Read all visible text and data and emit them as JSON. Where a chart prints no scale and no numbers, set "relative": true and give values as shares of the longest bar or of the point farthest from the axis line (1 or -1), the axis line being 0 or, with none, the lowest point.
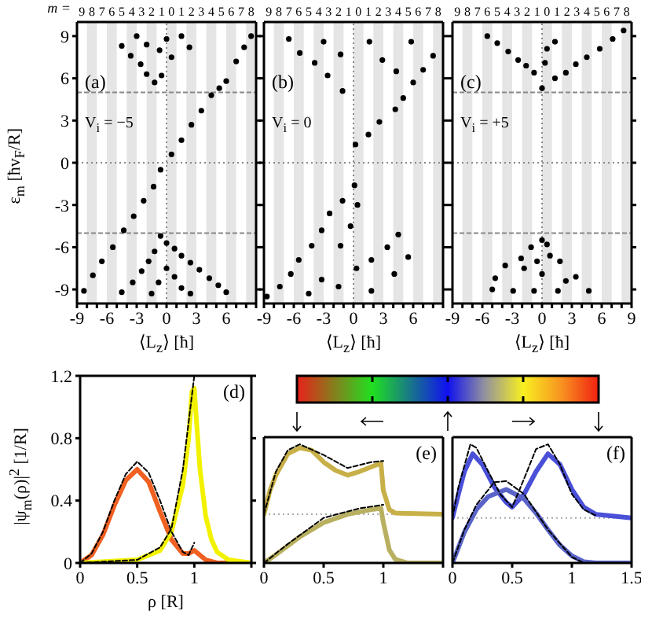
{
  "chart_data": [
    {
      "type": "scatter",
      "x2label": "m =",
      "xlabel": "⟨L$_{z}$⟩ [ħ]",
      "ylabel": "ε$_{m}$ [ħv$_{F}$/R]",
      "annotations": [
        "(a)",
        "V$_{i}$ = −5"
      ],
      "marker": "circle",
      "xlim": [
        -9,
        9
      ],
      "ylim": [
        -10,
        10
      ],
      "xticks": [
        -9,
        {
          "value": -8,
          "label": null
        },
        {
          "value": -7,
          "label": null
        },
        -6,
        {
          "value": -5,
          "label": null
        },
        {
          "value": -4,
          "label": null
        },
        -3,
        {
          "value": -2,
          "label": null
        },
        {
          "value": -1,
          "label": null
        },
        0,
        {
          "value": 1,
          "label": null
        },
        {
          "value": 2,
          "label": null
        },
        3,
        {
          "value": 4,
          "label": null
        },
        {
          "value": 5,
          "label": null
        },
        6,
        {
          "value": 7,
          "label": null
        },
        {
          "value": 8,
          "label": null
        },
        {
          "value": 9,
          "label": null
        }
      ],
      "yticks": [
        -9,
        -6,
        -3,
        0,
        3,
        6,
        9
      ],
      "x2lim": [
        -9,
        9
      ],
      "x2ticks": [
        {
          "value": -8.5,
          "label": "9"
        },
        {
          "value": -7.5,
          "label": "8"
        },
        {
          "value": -6.5,
          "label": "7"
        },
        {
          "value": -5.5,
          "label": "6"
        },
        {
          "value": -4.5,
          "label": "5"
        },
        {
          "value": -3.5,
          "label": "4"
        },
        {
          "value": -2.5,
          "label": "3"
        },
        {
          "value": -1.5,
          "label": "2"
        },
        {
          "value": -0.5,
          "label": "1"
        },
        {
          "value": 0.5,
          "label": "0"
        },
        {
          "value": 1.5,
          "label": "1"
        },
        {
          "value": 2.5,
          "label": "2"
        },
        {
          "value": 3.5,
          "label": "3"
        },
        {
          "value": 4.5,
          "label": "4"
        },
        {
          "value": 5.5,
          "label": "5"
        },
        {
          "value": 6.5,
          "label": "6"
        },
        {
          "value": 7.5,
          "label": "7"
        },
        {
          "value": 8.5,
          "label": "8"
        }
      ],
      "bands": [
        {
          "axis": "x",
          "from": -8,
          "to": -7,
          "color": "#e5e5e5"
        },
        {
          "axis": "x",
          "from": -6,
          "to": -5,
          "color": "#e5e5e5"
        },
        {
          "axis": "x",
          "from": -4,
          "to": -3,
          "color": "#e5e5e5"
        },
        {
          "axis": "x",
          "from": -2,
          "to": -1,
          "color": "#e5e5e5"
        },
        {
          "axis": "x",
          "from": 0,
          "to": 1,
          "color": "#e5e5e5"
        },
        {
          "axis": "x",
          "from": 2,
          "to": 3,
          "color": "#e5e5e5"
        },
        {
          "axis": "x",
          "from": 4,
          "to": 5,
          "color": "#e5e5e5"
        },
        {
          "axis": "x",
          "from": 6,
          "to": 7,
          "color": "#e5e5e5"
        },
        {
          "axis": "x",
          "from": 8,
          "to": 9,
          "color": "#e5e5e5"
        }
      ],
      "ref_lines": [
        {
          "axis": "y",
          "value": 5,
          "color": "#888888",
          "line_style": "dashed"
        },
        {
          "axis": "y",
          "value": -5,
          "color": "#888888",
          "line_style": "dashed"
        },
        {
          "axis": "y",
          "value": 0,
          "color": "#888888",
          "line_style": "dotted"
        },
        {
          "axis": "x",
          "value": 0,
          "color": "#888888",
          "line_style": "dotted"
        }
      ],
      "series": [
        {
          "color": "#000000",
          "x": [
            -8.3,
            -7.4,
            -6.5,
            -5.4,
            -4.3,
            -3.3,
            -2.3,
            -1.3,
            -0.6,
            0.5,
            1.5,
            2.5,
            3.5,
            4.5,
            5.3,
            6,
            7,
            7.8,
            8.5,
            -0.6,
            0,
            0.8,
            1.5,
            2.4,
            3.3,
            4.3,
            5.2,
            6,
            -1.2,
            -1.8,
            -2.5,
            -3.4,
            -4.5,
            0,
            0.8,
            -0.8,
            1.5,
            -1.5,
            2.4,
            -4.5,
            -3.6,
            -2.6,
            -2,
            -1.2,
            -3,
            -2,
            -0.7,
            0,
            0.5,
            1.5,
            2.3,
            -0.5
          ],
          "values": [
            -9.1,
            -8,
            -7,
            -6,
            -4.8,
            -3.8,
            -2.7,
            -1.7,
            -0.5,
            0.6,
            1.6,
            2.7,
            3.7,
            4.8,
            5.3,
            5.8,
            7.2,
            8.2,
            9,
            -5.2,
            -5.7,
            -6.1,
            -6.6,
            -7.1,
            -7.6,
            -8.2,
            -8.7,
            -9.2,
            -6.3,
            -7,
            -7.7,
            -8.5,
            -9.2,
            -7.5,
            -8.1,
            -8.5,
            -8.9,
            -9.3,
            -9.3,
            8.3,
            7.6,
            7,
            6.3,
            5.7,
            9,
            8.4,
            8,
            8.8,
            7.5,
            9,
            8.2,
            6.2
          ]
        }
      ]
    },
    {
      "type": "scatter",
      "xlabel": "⟨L$_{z}$⟩ [ħ]",
      "annotations": [
        "(b)",
        "V$_{i}$ = 0"
      ],
      "marker": "circle",
      "tick_labels": "x",
      "xlim": [
        -9,
        9
      ],
      "ylim": [
        -10,
        10
      ],
      "xticks": [
        -9,
        {
          "value": -8,
          "label": null
        },
        {
          "value": -7,
          "label": null
        },
        -6,
        {
          "value": -5,
          "label": null
        },
        {
          "value": -4,
          "label": null
        },
        -3,
        {
          "value": -2,
          "label": null
        },
        {
          "value": -1,
          "label": null
        },
        0,
        {
          "value": 1,
          "label": null
        },
        {
          "value": 2,
          "label": null
        },
        3,
        {
          "value": 4,
          "label": null
        },
        {
          "value": 5,
          "label": null
        },
        6,
        {
          "value": 7,
          "label": null
        },
        {
          "value": 8,
          "label": null
        },
        {
          "value": 9,
          "label": null
        }
      ],
      "yticks": [
        {
          "value": -9,
          "label": null
        },
        {
          "value": -6,
          "label": null
        },
        {
          "value": -3,
          "label": null
        },
        {
          "value": 0,
          "label": null
        },
        {
          "value": 3,
          "label": null
        },
        {
          "value": 6,
          "label": null
        },
        {
          "value": 9,
          "label": null
        }
      ],
      "x2lim": [
        -9,
        9
      ],
      "x2ticks": [
        {
          "value": -8.5,
          "label": "9"
        },
        {
          "value": -7.5,
          "label": "8"
        },
        {
          "value": -6.5,
          "label": "7"
        },
        {
          "value": -5.5,
          "label": "6"
        },
        {
          "value": -4.5,
          "label": "5"
        },
        {
          "value": -3.5,
          "label": "4"
        },
        {
          "value": -2.5,
          "label": "3"
        },
        {
          "value": -1.5,
          "label": "2"
        },
        {
          "value": -0.5,
          "label": "1"
        },
        {
          "value": 0.5,
          "label": "0"
        },
        {
          "value": 1.5,
          "label": "1"
        },
        {
          "value": 2.5,
          "label": "2"
        },
        {
          "value": 3.5,
          "label": "3"
        },
        {
          "value": 4.5,
          "label": "4"
        },
        {
          "value": 5.5,
          "label": "5"
        },
        {
          "value": 6.5,
          "label": "6"
        },
        {
          "value": 7.5,
          "label": "7"
        },
        {
          "value": 8.5,
          "label": "8"
        }
      ],
      "bands": [
        {
          "axis": "x",
          "from": -8,
          "to": -7,
          "color": "#e5e5e5"
        },
        {
          "axis": "x",
          "from": -6,
          "to": -5,
          "color": "#e5e5e5"
        },
        {
          "axis": "x",
          "from": -4,
          "to": -3,
          "color": "#e5e5e5"
        },
        {
          "axis": "x",
          "from": -2,
          "to": -1,
          "color": "#e5e5e5"
        },
        {
          "axis": "x",
          "from": 0,
          "to": 1,
          "color": "#e5e5e5"
        },
        {
          "axis": "x",
          "from": 2,
          "to": 3,
          "color": "#e5e5e5"
        },
        {
          "axis": "x",
          "from": 4,
          "to": 5,
          "color": "#e5e5e5"
        },
        {
          "axis": "x",
          "from": 6,
          "to": 7,
          "color": "#e5e5e5"
        },
        {
          "axis": "x",
          "from": 8,
          "to": 9,
          "color": "#e5e5e5"
        }
      ],
      "ref_lines": [
        {
          "axis": "y",
          "value": 0,
          "color": "#888888",
          "line_style": "dotted"
        },
        {
          "axis": "x",
          "value": 0,
          "color": "#888888",
          "line_style": "dotted"
        }
      ],
      "series": [
        {
          "color": "#000000",
          "x": [
            0.1,
            -1.1,
            0.4,
            -2.4,
            -0.3,
            -3.2,
            -1.3,
            -4.2,
            -5.5,
            -6.3,
            -7.4,
            -8.7,
            -3.2,
            -1.5,
            0.3,
            1.8,
            3.4,
            4.5,
            1.8,
            4.1,
            5.5,
            -4.5,
            0.2,
            1.5,
            2.6,
            4.2,
            5,
            6,
            7,
            8,
            -5.4,
            -3.9,
            -2.6,
            -1.1,
            -3,
            -1.3,
            1.6,
            2.9,
            4.3,
            5.8,
            -6.5
          ],
          "values": [
            -1.6,
            -2.7,
            -3,
            -3.6,
            -4.5,
            -4.8,
            -5.9,
            -5.9,
            -6.9,
            -7.9,
            -8.8,
            -9.5,
            -8.3,
            -8.8,
            -7.5,
            -6.9,
            -6,
            -5.1,
            -9.1,
            -7.9,
            -6.7,
            -9.3,
            1.3,
            2,
            2.9,
            3.8,
            4.6,
            5.7,
            6.6,
            7.6,
            7.8,
            7.1,
            6.2,
            5.1,
            8.6,
            7.7,
            8.6,
            7.3,
            6.5,
            8.6,
            8.8
          ]
        }
      ]
    },
    {
      "type": "scatter",
      "xlabel": "⟨L$_{z}$⟩ [ħ]",
      "annotations": [
        "(c)",
        "V$_{i}$ = +5"
      ],
      "marker": "circle",
      "tick_labels": "x",
      "xlim": [
        -9,
        9
      ],
      "ylim": [
        -10,
        10
      ],
      "xticks": [
        -9,
        {
          "value": -8,
          "label": null
        },
        {
          "value": -7,
          "label": null
        },
        -6,
        {
          "value": -5,
          "label": null
        },
        {
          "value": -4,
          "label": null
        },
        -3,
        {
          "value": -2,
          "label": null
        },
        {
          "value": -1,
          "label": null
        },
        0,
        {
          "value": 1,
          "label": null
        },
        {
          "value": 2,
          "label": null
        },
        3,
        {
          "value": 4,
          "label": null
        },
        {
          "value": 5,
          "label": null
        },
        6,
        {
          "value": 7,
          "label": null
        },
        {
          "value": 8,
          "label": null
        },
        9
      ],
      "yticks": [
        {
          "value": -9,
          "label": null
        },
        {
          "value": -6,
          "label": null
        },
        {
          "value": -3,
          "label": null
        },
        {
          "value": 0,
          "label": null
        },
        {
          "value": 3,
          "label": null
        },
        {
          "value": 6,
          "label": null
        },
        {
          "value": 9,
          "label": null
        }
      ],
      "x2lim": [
        -9,
        9
      ],
      "x2ticks": [
        {
          "value": -8.5,
          "label": "9"
        },
        {
          "value": -7.5,
          "label": "8"
        },
        {
          "value": -6.5,
          "label": "7"
        },
        {
          "value": -5.5,
          "label": "6"
        },
        {
          "value": -4.5,
          "label": "5"
        },
        {
          "value": -3.5,
          "label": "4"
        },
        {
          "value": -2.5,
          "label": "3"
        },
        {
          "value": -1.5,
          "label": "2"
        },
        {
          "value": -0.5,
          "label": "1"
        },
        {
          "value": 0.5,
          "label": "0"
        },
        {
          "value": 1.5,
          "label": "1"
        },
        {
          "value": 2.5,
          "label": "2"
        },
        {
          "value": 3.5,
          "label": "3"
        },
        {
          "value": 4.5,
          "label": "4"
        },
        {
          "value": 5.5,
          "label": "5"
        },
        {
          "value": 6.5,
          "label": "6"
        },
        {
          "value": 7.5,
          "label": "7"
        },
        {
          "value": 8.5,
          "label": "8"
        }
      ],
      "bands": [
        {
          "axis": "x",
          "from": -8,
          "to": -7,
          "color": "#e5e5e5"
        },
        {
          "axis": "x",
          "from": -6,
          "to": -5,
          "color": "#e5e5e5"
        },
        {
          "axis": "x",
          "from": -4,
          "to": -3,
          "color": "#e5e5e5"
        },
        {
          "axis": "x",
          "from": -2,
          "to": -1,
          "color": "#e5e5e5"
        },
        {
          "axis": "x",
          "from": 0,
          "to": 1,
          "color": "#e5e5e5"
        },
        {
          "axis": "x",
          "from": 2,
          "to": 3,
          "color": "#e5e5e5"
        },
        {
          "axis": "x",
          "from": 4,
          "to": 5,
          "color": "#e5e5e5"
        },
        {
          "axis": "x",
          "from": 6,
          "to": 7,
          "color": "#e5e5e5"
        },
        {
          "axis": "x",
          "from": 8,
          "to": 9,
          "color": "#e5e5e5"
        }
      ],
      "ref_lines": [
        {
          "axis": "y",
          "value": 5,
          "color": "#888888",
          "line_style": "dashed"
        },
        {
          "axis": "y",
          "value": -5,
          "color": "#888888",
          "line_style": "dashed"
        },
        {
          "axis": "y",
          "value": 0,
          "color": "#888888",
          "line_style": "dotted"
        },
        {
          "axis": "x",
          "value": 0,
          "color": "#888888",
          "line_style": "dotted"
        }
      ],
      "series": [
        {
          "color": "#000000",
          "x": [
            0,
            1.3,
            2.4,
            3.4,
            4.5,
            5.8,
            7.1,
            8.2,
            -0.8,
            -1.6,
            -2.4,
            -3.4,
            -4.5,
            -5.5,
            0.3,
            0.5,
            1.3,
            0,
            0.5,
            -1.1,
            0.8,
            -2.1,
            -0.5,
            1.8,
            -3.7,
            -1.8,
            0,
            3.4,
            -4.7,
            2.4,
            -5,
            -2.9,
            -0.8,
            1.6,
            4.7
          ],
          "values": [
            5.3,
            6,
            6.4,
            7,
            7.5,
            8.1,
            8.8,
            9.4,
            6.4,
            6.9,
            7.3,
            7.9,
            8.5,
            9,
            7.1,
            8.1,
            8.6,
            -5.5,
            -5.8,
            -6,
            -6.6,
            -6.8,
            -7,
            -7,
            -7.3,
            -7.5,
            -7.9,
            -8.1,
            -8.2,
            -8.4,
            -9,
            -9.1,
            -9.1,
            -9.1,
            -9.1
          ]
        }
      ]
    },
    {
      "type": "line",
      "xlabel": "ρ [R]",
      "ylabel": "|ψ$_{m}$(ρ)|$^{2}$ [1/R]",
      "annotations": [
        "(d)"
      ],
      "xlim": [
        0,
        1.5
      ],
      "ylim": [
        0,
        1.2
      ],
      "xticks": [
        0,
        0.5,
        1,
        {
          "value": 1.5,
          "label": null
        }
      ],
      "yticks": [
        0,
        0.4,
        0.8,
        1.2
      ],
      "series": [
        {
          "color": "#000000",
          "line_style": "dashed",
          "x": [
            0,
            0.1,
            0.2,
            0.3,
            0.4,
            0.5,
            0.6,
            0.7,
            0.8,
            0.9,
            0.95,
            1
          ],
          "values": [
            0,
            0.06,
            0.2,
            0.4,
            0.57,
            0.65,
            0.58,
            0.4,
            0.2,
            0.07,
            0.05,
            0.13
          ]
        },
        {
          "color": "#000000",
          "line_style": "dashed",
          "x": [
            0,
            0.5,
            0.7,
            0.8,
            0.9,
            0.95,
            1
          ],
          "values": [
            0,
            0.02,
            0.1,
            0.22,
            0.6,
            0.9,
            1.2
          ]
        },
        {
          "color": "#f06020",
          "line_style": "solid",
          "x": [
            0,
            0.1,
            0.2,
            0.3,
            0.4,
            0.5,
            0.6,
            0.7,
            0.8,
            0.9,
            0.95,
            1,
            1.1,
            1.2,
            1.5
          ],
          "values": [
            0,
            0.05,
            0.18,
            0.37,
            0.53,
            0.6,
            0.52,
            0.33,
            0.15,
            0.06,
            0.06,
            0.08,
            0.02,
            0,
            0
          ]
        },
        {
          "color": "#f2f200",
          "line_style": "solid",
          "x": [
            0,
            0.5,
            0.7,
            0.8,
            0.9,
            0.95,
            0.98,
            1,
            1.02,
            1.05,
            1.1,
            1.15,
            1.2,
            1.3,
            1.5
          ],
          "values": [
            0,
            0.02,
            0.08,
            0.2,
            0.5,
            0.8,
            1.1,
            1.12,
            0.9,
            0.6,
            0.3,
            0.15,
            0.07,
            0.02,
            0
          ]
        }
      ]
    },
    {
      "type": "line",
      "annotations": [
        "(e)"
      ],
      "relative": true,
      "xlim": [
        0,
        1.5
      ],
      "xticks": [
        0,
        0.5,
        1,
        {
          "value": 1.5,
          "label": null
        }
      ],
      "ref_lines": [
        {
          "axis": "y",
          "value": 0.41,
          "color": "#aaaaaa",
          "line_style": "dotted"
        }
      ],
      "series": [
        {
          "color": "#000000",
          "line_style": "dashed",
          "x": [
            0,
            0.1,
            0.2,
            0.3,
            0.5,
            0.7,
            0.9,
            1
          ],
          "values": [
            0.41,
            0.77,
            0.95,
            1,
            0.91,
            0.8,
            0.85,
            0.86
          ]
        },
        {
          "color": "#000000",
          "line_style": "dashed",
          "x": [
            0,
            0.2,
            0.5,
            0.8,
            1
          ],
          "values": [
            0,
            0.16,
            0.38,
            0.46,
            0.49
          ]
        },
        {
          "color": "#c8b048",
          "line_style": "solid",
          "x": [
            0,
            0.05,
            0.1,
            0.2,
            0.3,
            0.4,
            0.5,
            0.6,
            0.7,
            0.8,
            0.9,
            0.98,
            1,
            1.05,
            1.1,
            1.5
          ],
          "values": [
            0.41,
            0.61,
            0.74,
            0.92,
            0.97,
            0.95,
            0.85,
            0.78,
            0.74,
            0.77,
            0.81,
            0.84,
            0.61,
            0.45,
            0.42,
            0.41
          ]
        },
        {
          "color": "#b8b060",
          "line_style": "solid",
          "x": [
            0,
            0.1,
            0.3,
            0.5,
            0.7,
            0.9,
            0.98,
            1,
            1.05,
            1.1,
            1.2,
            1.5
          ],
          "values": [
            0,
            0.07,
            0.22,
            0.34,
            0.41,
            0.45,
            0.46,
            0.34,
            0.11,
            0.03,
            0,
            0
          ]
        }
      ]
    },
    {
      "type": "line",
      "annotations": [
        "(f)"
      ],
      "relative": true,
      "xlim": [
        0,
        1.5
      ],
      "xticks": [
        0,
        0.5,
        1,
        1.5
      ],
      "ref_lines": [
        {
          "axis": "y",
          "value": 0.38,
          "color": "#aaaaaa",
          "line_style": "dotted"
        }
      ],
      "series": [
        {
          "color": "#000000",
          "line_style": "dashed",
          "x": [
            0,
            0.05,
            0.15,
            0.2,
            0.3,
            0.4,
            0.5,
            0.6,
            0.7,
            0.8,
            0.9,
            1,
            1.1,
            1.2
          ],
          "values": [
            0.38,
            0.64,
            1,
            0.97,
            0.77,
            0.58,
            0.47,
            0.71,
            0.96,
            1,
            0.83,
            0.58,
            0.45,
            0.4
          ]
        },
        {
          "color": "#000000",
          "line_style": "dashed",
          "x": [
            0,
            0.1,
            0.2,
            0.35,
            0.45,
            0.6,
            0.8,
            1,
            1.1
          ],
          "values": [
            0,
            0.28,
            0.49,
            0.68,
            0.69,
            0.58,
            0.28,
            0.05,
            0
          ]
        },
        {
          "color": "#4a50d8",
          "line_style": "solid",
          "x": [
            0,
            0.05,
            0.1,
            0.17,
            0.25,
            0.35,
            0.45,
            0.5,
            0.6,
            0.7,
            0.8,
            0.9,
            1,
            1.1,
            1.2,
            1.5
          ],
          "values": [
            0.38,
            0.58,
            0.77,
            0.92,
            0.83,
            0.64,
            0.51,
            0.47,
            0.58,
            0.77,
            0.92,
            0.83,
            0.62,
            0.47,
            0.41,
            0.38
          ]
        },
        {
          "color": "#5a64c8",
          "line_style": "solid",
          "x": [
            0,
            0.1,
            0.2,
            0.3,
            0.45,
            0.6,
            0.7,
            0.8,
            0.9,
            1,
            1.1,
            1.2,
            1.5
          ],
          "values": [
            0,
            0.26,
            0.45,
            0.56,
            0.62,
            0.54,
            0.42,
            0.28,
            0.15,
            0.06,
            0.01,
            0,
            0
          ]
        }
      ]
    }
  ]
}
